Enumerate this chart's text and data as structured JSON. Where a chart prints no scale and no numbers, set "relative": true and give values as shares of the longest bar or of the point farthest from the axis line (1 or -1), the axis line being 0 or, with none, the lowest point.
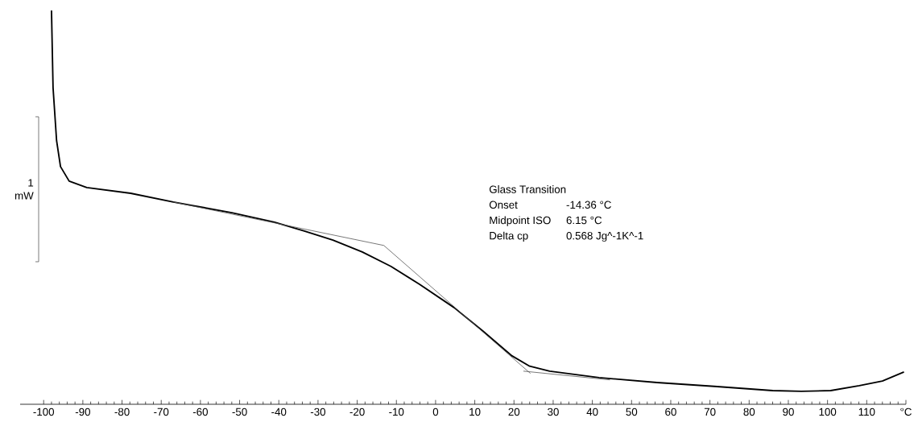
{
  "chart_data": {
    "type": "line",
    "relative": true,
    "xlim": [
      -106,
      120
    ],
    "xticks": [
      -100,
      -90,
      -80,
      -70,
      -60,
      -50,
      -40,
      -30,
      -20,
      -10,
      0,
      10,
      20,
      30,
      40,
      50,
      60,
      70,
      80,
      90,
      100,
      110,
      {
        "value": 120,
        "label": "°C"
      }
    ],
    "series": [
      {
        "color": "#000000",
        "x": [
          -98.0,
          -97.6,
          -96.7,
          -95.7,
          -93.5,
          -89.0,
          -77.8,
          -66.9,
          -52.0,
          -41.1,
          -33.5,
          -26.2,
          -18.7,
          -11.4,
          -4.1,
          4.7,
          12.0,
          19.5,
          24.0,
          29.1,
          41.7,
          56.5,
          71.1,
          86.0,
          93.3,
          100.8,
          108.1,
          114.0,
          119.5
        ],
        "values": [
          1.0,
          0.797,
          0.658,
          0.59,
          0.552,
          0.535,
          0.52,
          0.497,
          0.469,
          0.444,
          0.421,
          0.397,
          0.366,
          0.328,
          0.281,
          0.22,
          0.159,
          0.093,
          0.066,
          0.053,
          0.036,
          0.023,
          0.013,
          0.002,
          0.0,
          0.002,
          0.015,
          0.027,
          0.051
        ]
      },
      {
        "color": "#555555",
        "x": [
          -66.9,
          -13.2,
          24.2
        ],
        "values": [
          0.497,
          0.383,
          0.047
        ]
      },
      {
        "color": "#555555",
        "x": [
          22.4,
          44.5
        ],
        "values": [
          0.053,
          0.03
        ]
      }
    ],
    "annotations": [
      "1 mW",
      "Glass Transition",
      "Onset",
      "-14.36 °C",
      "Midpoint ISO",
      "6.15 °C",
      "Delta cp",
      "0.568 Jg^-1K^-1"
    ]
  }
}
